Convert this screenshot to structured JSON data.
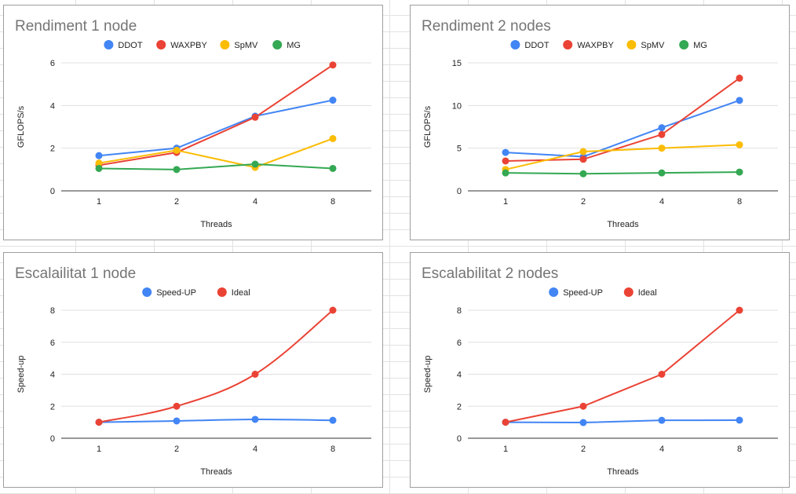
{
  "chart_data": [
    {
      "type": "line",
      "title": "Rendiment 1 node",
      "xlabel": "Threads",
      "ylabel": "GFLOPS/s",
      "categories": [
        "1",
        "2",
        "4",
        "8"
      ],
      "ylim": [
        0,
        6
      ],
      "yticks": [
        0,
        2,
        4,
        6
      ],
      "legend_position": "top",
      "smooth": false,
      "series": [
        {
          "name": "DDOT",
          "color": "#4285F4",
          "values": [
            1.65,
            2.0,
            3.5,
            4.25
          ]
        },
        {
          "name": "WAXPBY",
          "color": "#EA4335",
          "values": [
            1.2,
            1.8,
            3.45,
            5.9
          ]
        },
        {
          "name": "SpMV",
          "color": "#FBBC04",
          "values": [
            1.3,
            1.9,
            1.1,
            2.45
          ]
        },
        {
          "name": "MG",
          "color": "#34A853",
          "values": [
            1.05,
            1.0,
            1.25,
            1.05
          ]
        }
      ]
    },
    {
      "type": "line",
      "title": "Rendiment 2 nodes",
      "xlabel": "Threads",
      "ylabel": "GFLOPS/s",
      "categories": [
        "1",
        "2",
        "4",
        "8"
      ],
      "ylim": [
        0,
        15
      ],
      "yticks": [
        0,
        5,
        10,
        15
      ],
      "legend_position": "top",
      "smooth": false,
      "series": [
        {
          "name": "DDOT",
          "color": "#4285F4",
          "values": [
            4.5,
            4.0,
            7.4,
            10.6
          ]
        },
        {
          "name": "WAXPBY",
          "color": "#EA4335",
          "values": [
            3.5,
            3.7,
            6.6,
            13.2
          ]
        },
        {
          "name": "SpMV",
          "color": "#FBBC04",
          "values": [
            2.5,
            4.6,
            5.0,
            5.4
          ]
        },
        {
          "name": "MG",
          "color": "#34A853",
          "values": [
            2.1,
            2.0,
            2.1,
            2.2
          ]
        }
      ]
    },
    {
      "type": "line",
      "title": "Escalailitat 1 node",
      "xlabel": "Threads",
      "ylabel": "Speed-up",
      "categories": [
        "1",
        "2",
        "4",
        "8"
      ],
      "ylim": [
        0,
        8
      ],
      "yticks": [
        0,
        2,
        4,
        6,
        8
      ],
      "legend_position": "top",
      "smooth": true,
      "series": [
        {
          "name": "Speed-UP",
          "color": "#4285F4",
          "values": [
            1.0,
            1.08,
            1.18,
            1.12
          ]
        },
        {
          "name": "Ideal",
          "color": "#EA4335",
          "values": [
            1,
            2,
            4,
            8
          ]
        }
      ]
    },
    {
      "type": "line",
      "title": "Escalabilitat 2 nodes",
      "xlabel": "Threads",
      "ylabel": "Speed-up",
      "categories": [
        "1",
        "2",
        "4",
        "8"
      ],
      "ylim": [
        0,
        8
      ],
      "yticks": [
        0,
        2,
        4,
        6,
        8
      ],
      "legend_position": "top",
      "smooth": false,
      "series": [
        {
          "name": "Speed-UP",
          "color": "#4285F4",
          "values": [
            1.0,
            0.98,
            1.12,
            1.13
          ]
        },
        {
          "name": "Ideal",
          "color": "#EA4335",
          "values": [
            1,
            2,
            4,
            8
          ]
        }
      ]
    }
  ]
}
